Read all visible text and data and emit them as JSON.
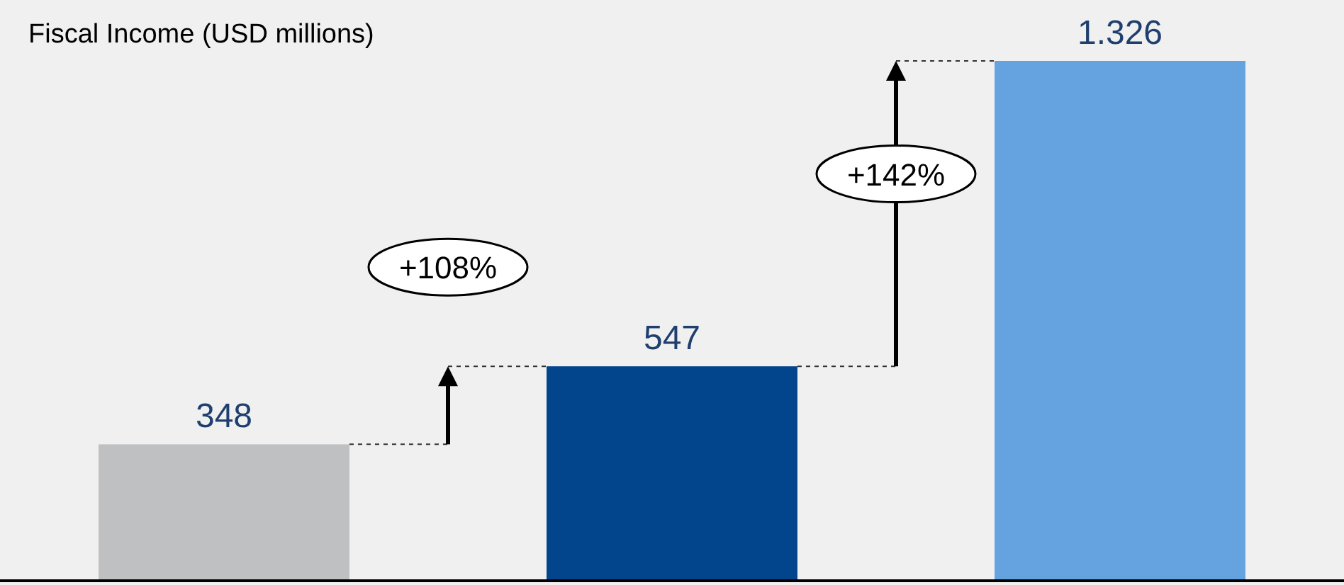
{
  "chart_data": {
    "type": "bar",
    "title": "Fiscal Income (USD millions)",
    "categories": [
      null,
      null,
      null
    ],
    "values": [
      348,
      547,
      1326
    ],
    "colors": [
      "#bfc0c2",
      "#03458c",
      "#65a3e0"
    ],
    "data_labels": true,
    "value_labels": [
      "348",
      "547",
      "1.326"
    ],
    "annotations": [
      "+108%",
      "+142%"
    ]
  }
}
